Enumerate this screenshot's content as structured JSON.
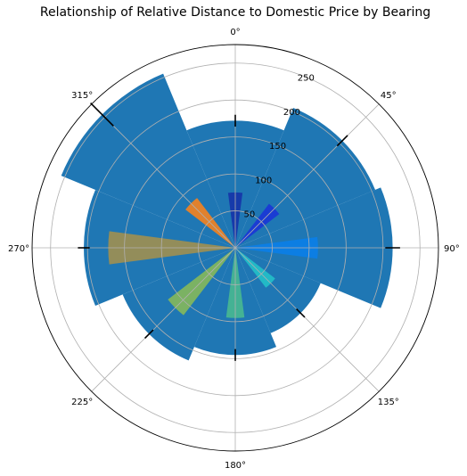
{
  "chart_data": {
    "type": "polar-bar",
    "title": "Relationship of Relative Distance to Domestic Price by Bearing",
    "angle_tick_labels": [
      "0°",
      "45°",
      "90°",
      "135°",
      "180°",
      "225°",
      "270°",
      "315°"
    ],
    "angle_ticks_deg": [
      0,
      45,
      90,
      135,
      180,
      225,
      270,
      315
    ],
    "radial_tick_labels": [
      "50",
      "100",
      "150",
      "200",
      "250"
    ],
    "radial_ticks": [
      50,
      100,
      150,
      200,
      250
    ],
    "rmax": 275,
    "theta_zero": "N",
    "theta_direction": "clockwise",
    "background_bars": {
      "color": "#1f77b4",
      "width_deg": 45,
      "centers_deg": [
        0,
        45,
        90,
        135,
        180,
        225,
        270,
        315
      ],
      "values": [
        172,
        205,
        213,
        125,
        145,
        165,
        205,
        255
      ],
      "error": [
        8,
        10,
        10,
        8,
        8,
        8,
        8,
        22
      ]
    },
    "foreground_bars": {
      "width_deg": 15,
      "centers_deg": [
        0,
        45,
        90,
        135,
        180,
        225,
        270,
        315
      ],
      "values": [
        75,
        75,
        112,
        68,
        95,
        115,
        172,
        85
      ],
      "colors": [
        "#1533a8",
        "#1a35d6",
        "#0a7ee8",
        "#22c0c8",
        "#48b890",
        "#85b85a",
        "#a08f50",
        "#f5821e"
      ]
    }
  }
}
